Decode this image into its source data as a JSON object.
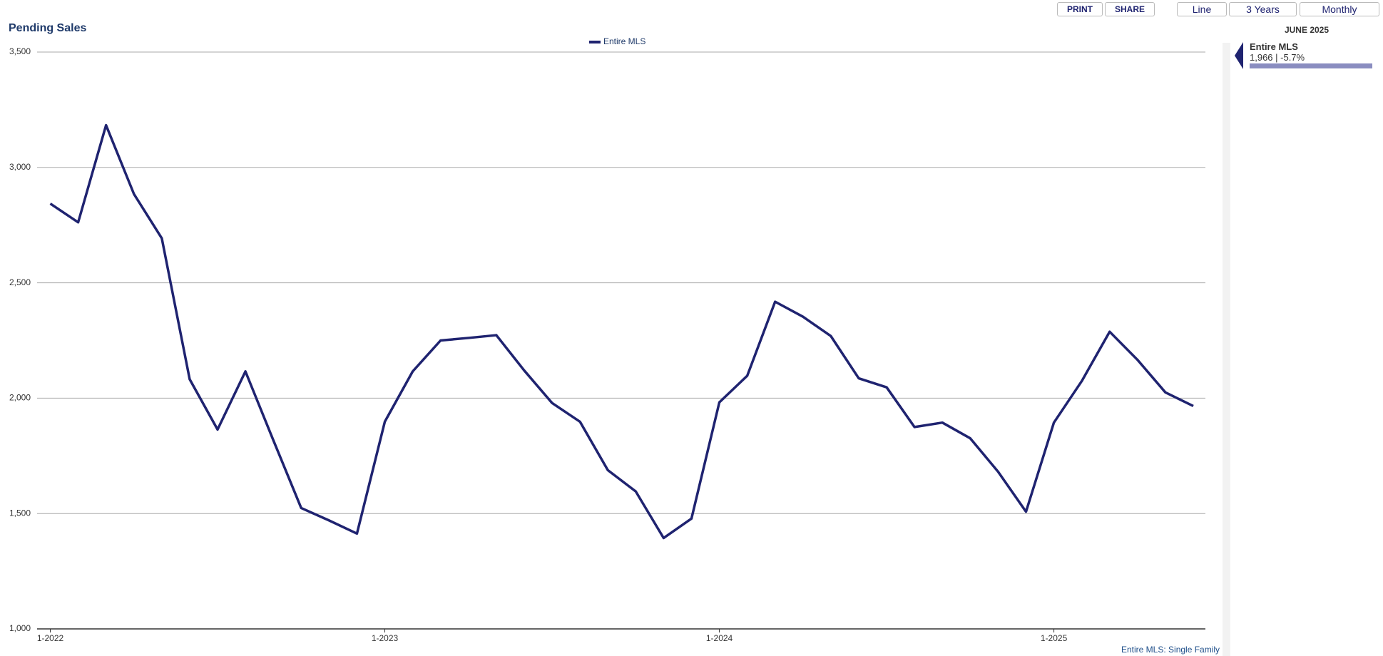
{
  "toolbar": {
    "print": "PRINT",
    "share": "SHARE",
    "chart_type": "Line",
    "range": "3 Years",
    "interval": "Monthly"
  },
  "sidebar": {
    "period": "JUNE 2025",
    "series": "Entire MLS",
    "summary": "1,966 | -5.7%"
  },
  "footer": "Entire MLS: Single Family",
  "chart_data": {
    "type": "line",
    "title": "Pending Sales",
    "categories": [
      "1-2022",
      null,
      null,
      null,
      null,
      null,
      null,
      null,
      null,
      null,
      null,
      null,
      "1-2023",
      null,
      null,
      null,
      null,
      null,
      null,
      null,
      null,
      null,
      null,
      null,
      "1-2024",
      null,
      null,
      null,
      null,
      null,
      null,
      null,
      null,
      null,
      null,
      null,
      "1-2025",
      null,
      null,
      null,
      null,
      null
    ],
    "series": [
      {
        "name": "Entire MLS",
        "color": "#1f2370",
        "values": [
          2843,
          2762,
          3183,
          2885,
          2693,
          2082,
          1864,
          2116,
          1818,
          1524,
          1470,
          1413,
          1898,
          2116,
          2250,
          2261,
          2273,
          2120,
          1979,
          1898,
          1688,
          1596,
          1394,
          1478,
          1982,
          2097,
          2418,
          2353,
          2269,
          2086,
          2047,
          1875,
          1894,
          1826,
          1681,
          1508,
          1894,
          2074,
          2288,
          2166,
          2025,
          1966
        ]
      }
    ],
    "ylim": [
      1000,
      3500
    ],
    "yticks": [
      {
        "value": 1000,
        "label": "1,000"
      },
      {
        "value": 1500,
        "label": "1,500"
      },
      {
        "value": 2000,
        "label": "2,000"
      },
      {
        "value": 2500,
        "label": "2,500"
      },
      {
        "value": 3000,
        "label": "3,000"
      },
      {
        "value": 3500,
        "label": "3,500"
      }
    ],
    "grid": true,
    "legend": "top"
  }
}
